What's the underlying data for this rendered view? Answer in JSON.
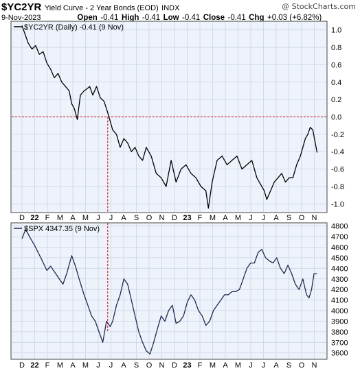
{
  "header": {
    "symbol": "$YC2YR",
    "description": "Yield Curve - 2 Year Bonds (EOD)",
    "exchange": "INDX",
    "date": "9-Nov-2023",
    "open_label": "Open",
    "open": "-0.41",
    "high_label": "High",
    "high": "-0.41",
    "low_label": "Low",
    "low": "-0.41",
    "close_label": "Close",
    "close": "-0.41",
    "chg_label": "Chg",
    "chg": "+0.03 (+6.82%)",
    "watermark": "@ StockCharts.com"
  },
  "chart_data": [
    {
      "type": "line",
      "legend": "$YC2YR (Daily) -0.41 (9 Nov)",
      "x_ticks": [
        "D",
        "22",
        "F",
        "M",
        "A",
        "M",
        "J",
        "J",
        "A",
        "S",
        "O",
        "N",
        "D",
        "23",
        "F",
        "M",
        "A",
        "M",
        "J",
        "J",
        "A",
        "S",
        "O",
        "N"
      ],
      "ylim": [
        -1.1,
        1.1
      ],
      "y_ticks": [
        1.0,
        0.8,
        0.6,
        0.4,
        0.2,
        0.0,
        -0.2,
        -0.4,
        -0.6,
        -0.8,
        -1.0
      ],
      "y_tick_labels": [
        "1.0",
        "0.8",
        "0.6",
        "0.4",
        "0.2",
        "0.0",
        "-0.2",
        "-0.4",
        "-0.6",
        "-0.8",
        "-1.0"
      ],
      "reference_line": 0.0,
      "grid": true,
      "line_color": "#000000",
      "x_range": [
        0,
        23.8
      ],
      "x": [
        0.0,
        0.25,
        0.5,
        0.8,
        1.1,
        1.4,
        1.7,
        2.0,
        2.3,
        2.6,
        2.9,
        3.2,
        3.5,
        3.8,
        4.0,
        4.2,
        4.45,
        4.7,
        5.0,
        5.2,
        5.45,
        5.7,
        6.0,
        6.3,
        6.6,
        6.9,
        7.1,
        7.3,
        7.6,
        7.9,
        8.2,
        8.5,
        8.8,
        9.1,
        9.4,
        9.7,
        10.0,
        10.4,
        10.8,
        11.2,
        11.6,
        12.0,
        12.4,
        12.8,
        13.2,
        13.6,
        14.0,
        14.4,
        14.8,
        15.0,
        15.3,
        15.7,
        16.1,
        16.5,
        16.9,
        17.3,
        17.7,
        18.1,
        18.5,
        18.9,
        19.3,
        19.5,
        19.7,
        20.0,
        20.3,
        20.6,
        20.9,
        21.2,
        21.5,
        21.8,
        22.1,
        22.4,
        22.6,
        22.8,
        23.0,
        23.2,
        23.4,
        23.6,
        23.75
      ],
      "y": [
        1.05,
        0.95,
        0.85,
        0.78,
        0.82,
        0.72,
        0.75,
        0.62,
        0.55,
        0.45,
        0.5,
        0.4,
        0.35,
        0.3,
        0.15,
        0.1,
        -0.03,
        0.25,
        0.3,
        0.32,
        0.35,
        0.25,
        0.35,
        0.22,
        0.18,
        0.05,
        -0.05,
        -0.15,
        -0.2,
        -0.35,
        -0.25,
        -0.3,
        -0.4,
        -0.35,
        -0.45,
        -0.5,
        -0.35,
        -0.45,
        -0.65,
        -0.7,
        -0.8,
        -0.5,
        -0.75,
        -0.6,
        -0.55,
        -0.65,
        -0.7,
        -0.8,
        -0.85,
        -1.05,
        -0.75,
        -0.5,
        -0.45,
        -0.55,
        -0.5,
        -0.45,
        -0.6,
        -0.55,
        -0.5,
        -0.7,
        -0.8,
        -0.85,
        -0.95,
        -0.85,
        -0.75,
        -0.7,
        -0.65,
        -0.75,
        -0.7,
        -0.7,
        -0.55,
        -0.45,
        -0.35,
        -0.25,
        -0.2,
        -0.12,
        -0.15,
        -0.3,
        -0.41
      ]
    },
    {
      "type": "line",
      "legend": "$SPX 4347.35 (9 Nov)",
      "x_ticks": [
        "D",
        "22",
        "F",
        "M",
        "A",
        "M",
        "J",
        "J",
        "A",
        "S",
        "O",
        "N",
        "D",
        "23",
        "F",
        "M",
        "A",
        "M",
        "J",
        "J",
        "A",
        "S",
        "O",
        "N"
      ],
      "ylim": [
        3540,
        4830
      ],
      "y_ticks": [
        4800,
        4700,
        4600,
        4500,
        4400,
        4300,
        4200,
        4100,
        4000,
        3900,
        3800,
        3700,
        3600
      ],
      "y_tick_labels": [
        "4800",
        "4700",
        "4600",
        "4500",
        "4400",
        "4300",
        "4200",
        "4100",
        "4000",
        "3900",
        "3800",
        "3700",
        "3600"
      ],
      "grid": true,
      "line_color": "#1f2b4d",
      "x_range": [
        0,
        23.8
      ],
      "x": [
        0.0,
        0.3,
        0.6,
        1.0,
        1.3,
        1.6,
        2.0,
        2.3,
        2.6,
        3.0,
        3.3,
        3.6,
        4.0,
        4.3,
        4.6,
        5.0,
        5.3,
        5.6,
        5.9,
        6.2,
        6.5,
        6.8,
        7.1,
        7.3,
        7.6,
        7.9,
        8.2,
        8.5,
        8.8,
        9.1,
        9.4,
        9.7,
        10.0,
        10.3,
        10.6,
        10.9,
        11.2,
        11.5,
        11.8,
        12.1,
        12.4,
        12.7,
        13.0,
        13.3,
        13.6,
        13.9,
        14.2,
        14.5,
        14.8,
        15.1,
        15.4,
        15.7,
        16.0,
        16.3,
        16.6,
        16.9,
        17.2,
        17.5,
        17.8,
        18.1,
        18.4,
        18.7,
        19.0,
        19.3,
        19.6,
        19.9,
        20.2,
        20.5,
        20.8,
        21.1,
        21.4,
        21.7,
        22.0,
        22.3,
        22.6,
        22.9,
        23.1,
        23.3,
        23.5,
        23.75
      ],
      "y": [
        4680,
        4770,
        4700,
        4620,
        4550,
        4480,
        4380,
        4420,
        4370,
        4300,
        4250,
        4350,
        4520,
        4420,
        4300,
        4150,
        4050,
        3950,
        3900,
        3800,
        3700,
        3900,
        3850,
        3900,
        4050,
        4150,
        4300,
        4250,
        4100,
        3950,
        3800,
        3700,
        3620,
        3590,
        3700,
        3830,
        3950,
        3900,
        4000,
        4050,
        3880,
        3900,
        3950,
        4080,
        4150,
        4100,
        4000,
        3950,
        3860,
        3900,
        4000,
        4050,
        4100,
        4150,
        4150,
        4180,
        4180,
        4200,
        4300,
        4400,
        4450,
        4450,
        4550,
        4580,
        4500,
        4470,
        4450,
        4500,
        4400,
        4350,
        4430,
        4350,
        4250,
        4200,
        4300,
        4150,
        4120,
        4200,
        4350,
        4347
      ]
    }
  ],
  "annotation": {
    "type": "vertical-dashed-marker",
    "x": 6.9,
    "color": "#cc0000"
  }
}
